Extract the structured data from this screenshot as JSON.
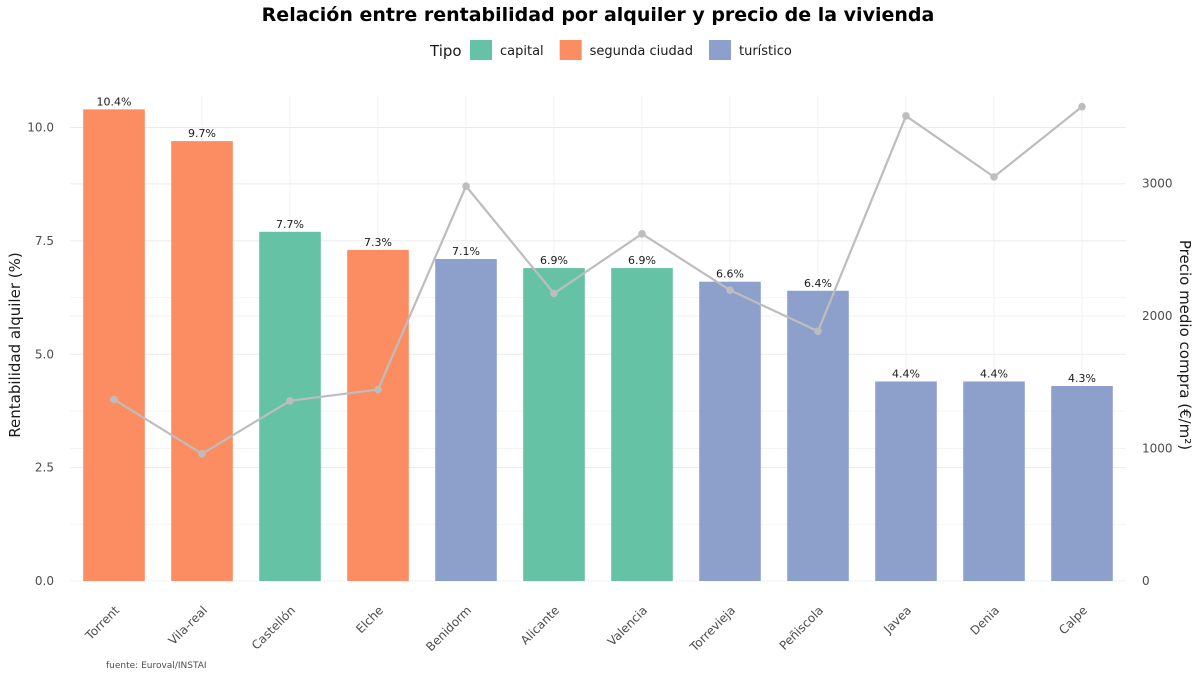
{
  "chart_data": {
    "type": "bar",
    "title": "Relación entre rentabilidad por alquiler y precio de la vivienda",
    "ylabel": "Rentabilidad alquiler (%)",
    "y2label": "Precio medio compra (€/m²)",
    "caption": "fuente: Euroval/INSTAI",
    "legend_title": "Tipo",
    "legend": [
      {
        "name": "capital",
        "color": "#66c2a5"
      },
      {
        "name": "segunda ciudad",
        "color": "#fc8d62"
      },
      {
        "name": "turístico",
        "color": "#8da0cb"
      }
    ],
    "categories": [
      "Torrent",
      "Vila-real",
      "Castellón",
      "Elche",
      "Benidorm",
      "Alicante",
      "Valencia",
      "Torrevieja",
      "Peñiscola",
      "Javea",
      "Denia",
      "Calpe"
    ],
    "types": [
      "segunda ciudad",
      "segunda ciudad",
      "capital",
      "segunda ciudad",
      "turístico",
      "capital",
      "capital",
      "turístico",
      "turístico",
      "turístico",
      "turístico",
      "turístico"
    ],
    "values": [
      10.4,
      9.7,
      7.7,
      7.3,
      7.1,
      6.9,
      6.9,
      6.6,
      6.4,
      4.4,
      4.4,
      4.3
    ],
    "labels": [
      "10.4%",
      "9.7%",
      "7.7%",
      "7.3%",
      "7.1%",
      "6.9%",
      "6.9%",
      "6.6%",
      "6.4%",
      "4.4%",
      "4.4%",
      "4.3%"
    ],
    "ylim": [
      0,
      10.4
    ],
    "yticks": [
      0,
      2.5,
      5,
      7.5,
      10
    ],
    "ytick_labels": [
      "0.0",
      "2.5",
      "5.0",
      "7.5",
      "10.0"
    ],
    "y2lim": [
      0,
      3580
    ],
    "y2ticks": [
      0,
      1000,
      2000,
      3000
    ],
    "y2tick_labels": [
      "0",
      "1000",
      "2000",
      "3000"
    ],
    "line_series": {
      "color": "#bdbdbd",
      "values": [
        1370,
        960,
        1360,
        1445,
        2980,
        2170,
        2620,
        2195,
        1885,
        3510,
        3050,
        3580
      ]
    },
    "grid": true
  }
}
